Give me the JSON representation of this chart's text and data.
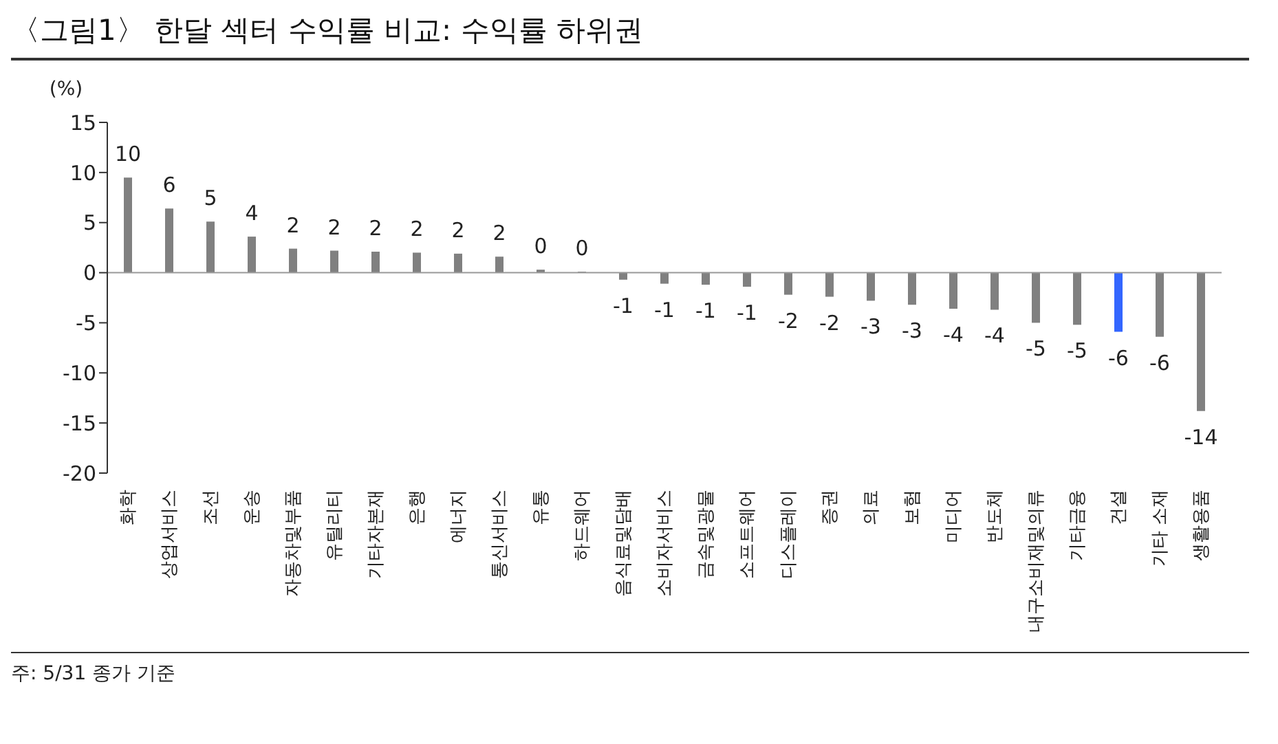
{
  "chart_data": {
    "type": "bar",
    "title": "〈그림1〉 한달 섹터 수익률 비교: 수익률 하위권",
    "ylabel": "(%)",
    "categories": [
      "화학",
      "상업서비스",
      "조선",
      "운송",
      "자동차및부품",
      "유틸리티",
      "기타자본재",
      "은행",
      "에너지",
      "통신서비스",
      "유통",
      "하드웨어",
      "음식료및담배",
      "소비자서비스",
      "금속및광물",
      "소프트웨어",
      "디스플레이",
      "증권",
      "의료",
      "보험",
      "미디어",
      "반도체",
      "내구소비재및의류",
      "기타금융",
      "건설",
      "기타 소재",
      "생활용품"
    ],
    "values": [
      9.5,
      6.4,
      5.1,
      3.6,
      2.4,
      2.2,
      2.1,
      2.0,
      1.9,
      1.6,
      0.3,
      0.1,
      -0.7,
      -1.1,
      -1.2,
      -1.4,
      -2.2,
      -2.4,
      -2.8,
      -3.2,
      -3.6,
      -3.7,
      -5.0,
      -5.2,
      -5.9,
      -6.4,
      -13.8
    ],
    "value_labels": [
      "10",
      "6",
      "5",
      "4",
      "2",
      "2",
      "2",
      "2",
      "2",
      "2",
      "0",
      "0",
      "-1",
      "-1",
      "-1",
      "-1",
      "-2",
      "-2",
      "-3",
      "-3",
      "-4",
      "-4",
      "-5",
      "-5",
      "-6",
      "-6",
      "-14"
    ],
    "colors": [
      "#808080",
      "#808080",
      "#808080",
      "#808080",
      "#808080",
      "#808080",
      "#808080",
      "#808080",
      "#808080",
      "#808080",
      "#808080",
      "#808080",
      "#808080",
      "#808080",
      "#808080",
      "#808080",
      "#808080",
      "#808080",
      "#808080",
      "#808080",
      "#808080",
      "#808080",
      "#808080",
      "#808080",
      "#3366ff",
      "#808080",
      "#808080"
    ],
    "ylim": [
      -20,
      15
    ],
    "yticks": [
      -20,
      -15,
      -10,
      -5,
      0,
      5,
      10,
      15
    ],
    "annotations": [
      "주: 5/31 종가 기준"
    ]
  }
}
